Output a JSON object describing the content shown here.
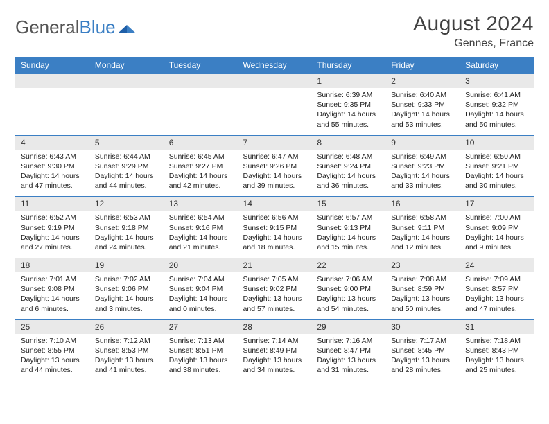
{
  "logo": {
    "word1": "General",
    "word2": "Blue"
  },
  "title": {
    "month": "August 2024",
    "location": "Gennes, France"
  },
  "colors": {
    "header_bg": "#3b7fc4",
    "header_text": "#ffffff",
    "daynum_bg": "#e9e9e9",
    "border": "#3b7fc4",
    "text": "#222222",
    "logo_gray": "#555555",
    "logo_blue": "#3b7fc4"
  },
  "weekdays": [
    "Sunday",
    "Monday",
    "Tuesday",
    "Wednesday",
    "Thursday",
    "Friday",
    "Saturday"
  ],
  "weeks": [
    {
      "nums": [
        "",
        "",
        "",
        "",
        "1",
        "2",
        "3"
      ],
      "details": [
        null,
        null,
        null,
        null,
        {
          "sunrise": "Sunrise: 6:39 AM",
          "sunset": "Sunset: 9:35 PM",
          "daylight": "Daylight: 14 hours and 55 minutes."
        },
        {
          "sunrise": "Sunrise: 6:40 AM",
          "sunset": "Sunset: 9:33 PM",
          "daylight": "Daylight: 14 hours and 53 minutes."
        },
        {
          "sunrise": "Sunrise: 6:41 AM",
          "sunset": "Sunset: 9:32 PM",
          "daylight": "Daylight: 14 hours and 50 minutes."
        }
      ]
    },
    {
      "nums": [
        "4",
        "5",
        "6",
        "7",
        "8",
        "9",
        "10"
      ],
      "details": [
        {
          "sunrise": "Sunrise: 6:43 AM",
          "sunset": "Sunset: 9:30 PM",
          "daylight": "Daylight: 14 hours and 47 minutes."
        },
        {
          "sunrise": "Sunrise: 6:44 AM",
          "sunset": "Sunset: 9:29 PM",
          "daylight": "Daylight: 14 hours and 44 minutes."
        },
        {
          "sunrise": "Sunrise: 6:45 AM",
          "sunset": "Sunset: 9:27 PM",
          "daylight": "Daylight: 14 hours and 42 minutes."
        },
        {
          "sunrise": "Sunrise: 6:47 AM",
          "sunset": "Sunset: 9:26 PM",
          "daylight": "Daylight: 14 hours and 39 minutes."
        },
        {
          "sunrise": "Sunrise: 6:48 AM",
          "sunset": "Sunset: 9:24 PM",
          "daylight": "Daylight: 14 hours and 36 minutes."
        },
        {
          "sunrise": "Sunrise: 6:49 AM",
          "sunset": "Sunset: 9:23 PM",
          "daylight": "Daylight: 14 hours and 33 minutes."
        },
        {
          "sunrise": "Sunrise: 6:50 AM",
          "sunset": "Sunset: 9:21 PM",
          "daylight": "Daylight: 14 hours and 30 minutes."
        }
      ]
    },
    {
      "nums": [
        "11",
        "12",
        "13",
        "14",
        "15",
        "16",
        "17"
      ],
      "details": [
        {
          "sunrise": "Sunrise: 6:52 AM",
          "sunset": "Sunset: 9:19 PM",
          "daylight": "Daylight: 14 hours and 27 minutes."
        },
        {
          "sunrise": "Sunrise: 6:53 AM",
          "sunset": "Sunset: 9:18 PM",
          "daylight": "Daylight: 14 hours and 24 minutes."
        },
        {
          "sunrise": "Sunrise: 6:54 AM",
          "sunset": "Sunset: 9:16 PM",
          "daylight": "Daylight: 14 hours and 21 minutes."
        },
        {
          "sunrise": "Sunrise: 6:56 AM",
          "sunset": "Sunset: 9:15 PM",
          "daylight": "Daylight: 14 hours and 18 minutes."
        },
        {
          "sunrise": "Sunrise: 6:57 AM",
          "sunset": "Sunset: 9:13 PM",
          "daylight": "Daylight: 14 hours and 15 minutes."
        },
        {
          "sunrise": "Sunrise: 6:58 AM",
          "sunset": "Sunset: 9:11 PM",
          "daylight": "Daylight: 14 hours and 12 minutes."
        },
        {
          "sunrise": "Sunrise: 7:00 AM",
          "sunset": "Sunset: 9:09 PM",
          "daylight": "Daylight: 14 hours and 9 minutes."
        }
      ]
    },
    {
      "nums": [
        "18",
        "19",
        "20",
        "21",
        "22",
        "23",
        "24"
      ],
      "details": [
        {
          "sunrise": "Sunrise: 7:01 AM",
          "sunset": "Sunset: 9:08 PM",
          "daylight": "Daylight: 14 hours and 6 minutes."
        },
        {
          "sunrise": "Sunrise: 7:02 AM",
          "sunset": "Sunset: 9:06 PM",
          "daylight": "Daylight: 14 hours and 3 minutes."
        },
        {
          "sunrise": "Sunrise: 7:04 AM",
          "sunset": "Sunset: 9:04 PM",
          "daylight": "Daylight: 14 hours and 0 minutes."
        },
        {
          "sunrise": "Sunrise: 7:05 AM",
          "sunset": "Sunset: 9:02 PM",
          "daylight": "Daylight: 13 hours and 57 minutes."
        },
        {
          "sunrise": "Sunrise: 7:06 AM",
          "sunset": "Sunset: 9:00 PM",
          "daylight": "Daylight: 13 hours and 54 minutes."
        },
        {
          "sunrise": "Sunrise: 7:08 AM",
          "sunset": "Sunset: 8:59 PM",
          "daylight": "Daylight: 13 hours and 50 minutes."
        },
        {
          "sunrise": "Sunrise: 7:09 AM",
          "sunset": "Sunset: 8:57 PM",
          "daylight": "Daylight: 13 hours and 47 minutes."
        }
      ]
    },
    {
      "nums": [
        "25",
        "26",
        "27",
        "28",
        "29",
        "30",
        "31"
      ],
      "details": [
        {
          "sunrise": "Sunrise: 7:10 AM",
          "sunset": "Sunset: 8:55 PM",
          "daylight": "Daylight: 13 hours and 44 minutes."
        },
        {
          "sunrise": "Sunrise: 7:12 AM",
          "sunset": "Sunset: 8:53 PM",
          "daylight": "Daylight: 13 hours and 41 minutes."
        },
        {
          "sunrise": "Sunrise: 7:13 AM",
          "sunset": "Sunset: 8:51 PM",
          "daylight": "Daylight: 13 hours and 38 minutes."
        },
        {
          "sunrise": "Sunrise: 7:14 AM",
          "sunset": "Sunset: 8:49 PM",
          "daylight": "Daylight: 13 hours and 34 minutes."
        },
        {
          "sunrise": "Sunrise: 7:16 AM",
          "sunset": "Sunset: 8:47 PM",
          "daylight": "Daylight: 13 hours and 31 minutes."
        },
        {
          "sunrise": "Sunrise: 7:17 AM",
          "sunset": "Sunset: 8:45 PM",
          "daylight": "Daylight: 13 hours and 28 minutes."
        },
        {
          "sunrise": "Sunrise: 7:18 AM",
          "sunset": "Sunset: 8:43 PM",
          "daylight": "Daylight: 13 hours and 25 minutes."
        }
      ]
    }
  ]
}
